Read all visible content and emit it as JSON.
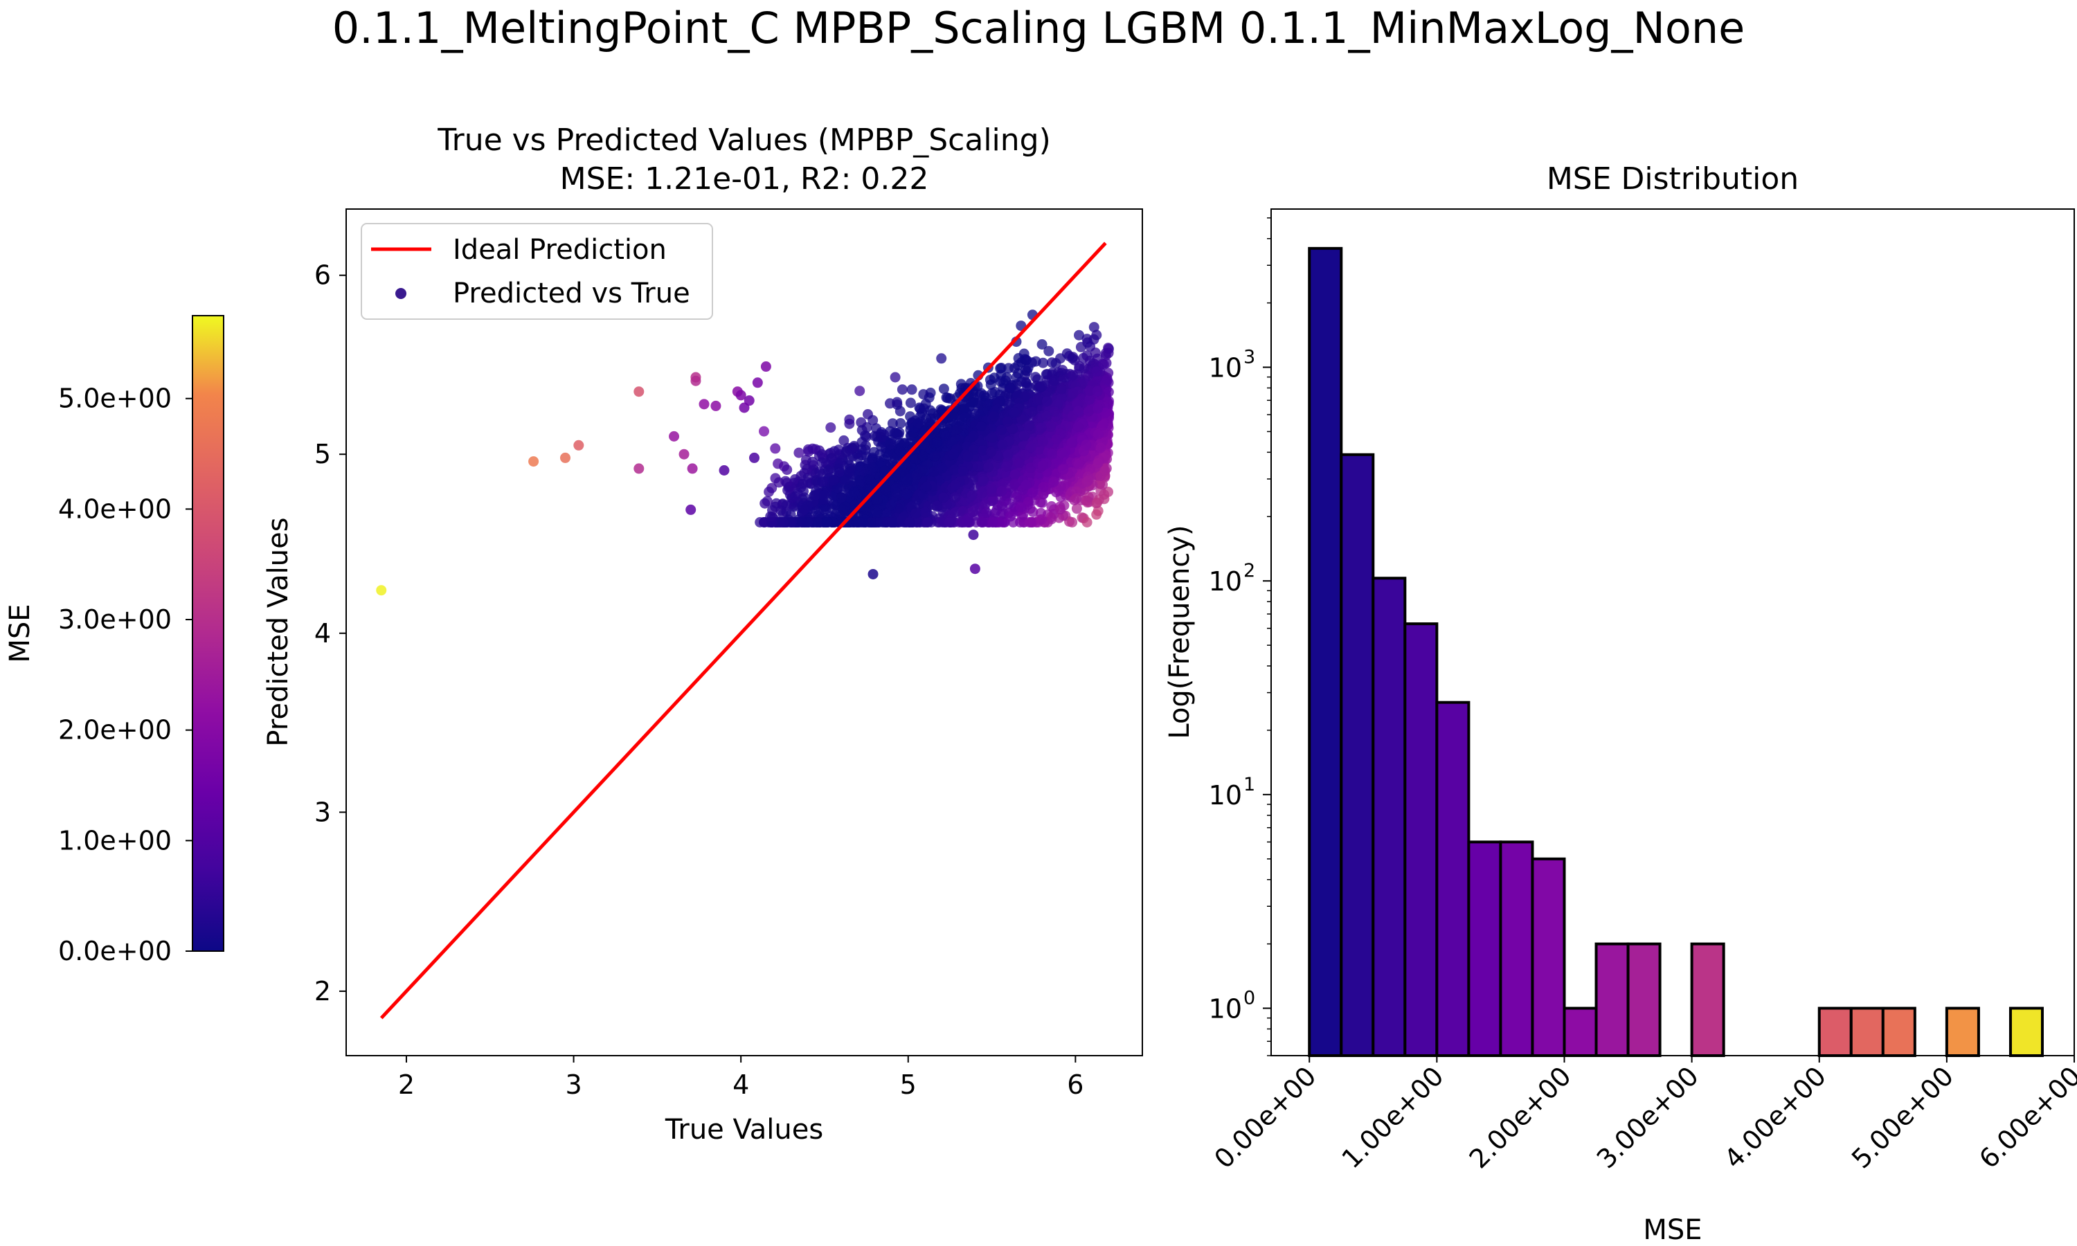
{
  "figure": {
    "suptitle": "0.1.1_MeltingPoint_C MPBP_Scaling LGBM 0.1.1_MinMaxLog_None"
  },
  "colorbar": {
    "label": "MSE",
    "range": [
      0,
      5.75
    ],
    "colormap": "plasma",
    "ticks": [
      0,
      1,
      2,
      3,
      4,
      5
    ],
    "tick_labels": [
      "0.0e+00",
      "1.0e+00",
      "2.0e+00",
      "3.0e+00",
      "4.0e+00",
      "5.0e+00"
    ]
  },
  "chart_data": [
    {
      "type": "scatter",
      "title_line1": "True vs Predicted Values (MPBP_Scaling)",
      "title_line2": "MSE: 1.21e-01, R2: 0.22",
      "xlabel": "True Values",
      "ylabel": "Predicted Values",
      "xlim": [
        1.64,
        6.4
      ],
      "ylim": [
        1.64,
        6.37
      ],
      "xticks": [
        2,
        3,
        4,
        5,
        6
      ],
      "xtick_labels": [
        "2",
        "3",
        "4",
        "5",
        "6"
      ],
      "yticks": [
        2,
        3,
        4,
        5,
        6
      ],
      "ytick_labels": [
        "2",
        "3",
        "4",
        "5",
        "6"
      ],
      "legend": {
        "position": "upper-left",
        "line_label": "Ideal Prediction",
        "scatter_label": "Predicted vs True"
      },
      "ideal_line": {
        "x": [
          1.85,
          6.18
        ],
        "y": [
          1.85,
          6.18
        ],
        "color": "#ff0000"
      },
      "cluster": {
        "x_range": [
          4.1,
          6.2
        ],
        "center": [
          5.5,
          5.3
        ],
        "approx_points": 4000
      },
      "outliers": [
        {
          "x": 1.85,
          "y": 4.24,
          "mse": 5.7
        },
        {
          "x": 2.76,
          "y": 4.96,
          "mse": 4.8
        },
        {
          "x": 2.95,
          "y": 4.98,
          "mse": 4.6
        },
        {
          "x": 3.03,
          "y": 5.05,
          "mse": 4.2
        },
        {
          "x": 3.39,
          "y": 5.35,
          "mse": 3.9
        },
        {
          "x": 3.39,
          "y": 4.92,
          "mse": 2.9
        },
        {
          "x": 3.6,
          "y": 5.1,
          "mse": 2.3
        },
        {
          "x": 3.66,
          "y": 5.0,
          "mse": 2.6
        },
        {
          "x": 3.71,
          "y": 4.92,
          "mse": 2.4
        },
        {
          "x": 3.7,
          "y": 4.69,
          "mse": 1.2
        },
        {
          "x": 3.73,
          "y": 5.43,
          "mse": 3.0
        },
        {
          "x": 3.73,
          "y": 5.41,
          "mse": 2.9
        },
        {
          "x": 3.78,
          "y": 5.28,
          "mse": 2.2
        },
        {
          "x": 3.85,
          "y": 5.27,
          "mse": 2.1
        },
        {
          "x": 3.9,
          "y": 4.91,
          "mse": 1.0
        },
        {
          "x": 3.98,
          "y": 5.35,
          "mse": 2.0
        },
        {
          "x": 4.0,
          "y": 5.33,
          "mse": 1.8
        },
        {
          "x": 4.02,
          "y": 5.26,
          "mse": 1.6
        },
        {
          "x": 4.05,
          "y": 5.3,
          "mse": 1.6
        },
        {
          "x": 4.08,
          "y": 4.98,
          "mse": 0.9
        },
        {
          "x": 4.1,
          "y": 5.4,
          "mse": 1.7
        },
        {
          "x": 4.15,
          "y": 5.49,
          "mse": 1.8
        },
        {
          "x": 4.79,
          "y": 4.33,
          "mse": 0.2
        },
        {
          "x": 5.39,
          "y": 4.55,
          "mse": 0.7
        },
        {
          "x": 5.4,
          "y": 4.36,
          "mse": 1.1
        }
      ]
    },
    {
      "type": "bar",
      "title": "MSE Distribution",
      "xlabel": "MSE",
      "ylabel": "Log(Frequency)",
      "yscale": "log",
      "xlim": [
        -0.3,
        6.0
      ],
      "ylim": [
        0.6,
        5500
      ],
      "bin_width": 0.25,
      "bins_start": [
        0.0,
        0.25,
        0.5,
        0.75,
        1.0,
        1.25,
        1.5,
        1.75,
        2.0,
        2.25,
        2.5,
        2.75,
        3.0,
        3.25,
        3.5,
        3.75,
        4.0,
        4.25,
        4.5,
        4.75,
        5.0,
        5.25,
        5.5
      ],
      "values": [
        3600,
        390,
        103,
        63,
        27,
        6,
        6,
        5,
        1,
        2,
        2,
        0,
        2,
        0,
        0,
        0,
        1,
        1,
        1,
        0,
        1,
        0,
        1
      ],
      "xticks": [
        0,
        1,
        2,
        3,
        4,
        5,
        6
      ],
      "xtick_labels": [
        "0.00e+00",
        "1.00e+00",
        "2.00e+00",
        "3.00e+00",
        "4.00e+00",
        "5.00e+00",
        "6.00e+00"
      ],
      "yticks": [
        1,
        10,
        100,
        1000
      ],
      "ytick_labels": [
        "10",
        "10",
        "10",
        "10"
      ],
      "ytick_exponents": [
        "0",
        "1",
        "2",
        "3"
      ]
    }
  ]
}
